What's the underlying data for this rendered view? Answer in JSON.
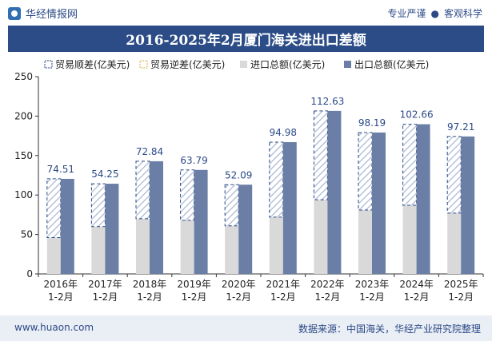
{
  "header": {
    "brand": "华经情报网",
    "tagline_left": "专业严谨",
    "tagline_right": "客观科学"
  },
  "footer": {
    "website": "www.huaon.com",
    "source": "数据来源：中国海关，华经产业研究院整理"
  },
  "colors": {
    "title_bg": "#2b4c86",
    "export": "#6b7ea6",
    "import": "#d9d9d9",
    "surplus_hatch": "#a9b8d4",
    "label": "#2c4a86"
  },
  "chart_data": {
    "type": "bar",
    "title": "2016-2025年2月厦门海关进出口差额",
    "categories": [
      "2016年\n1-2月",
      "2017年\n1-2月",
      "2018年\n1-2月",
      "2019年\n1-2月",
      "2020年\n1-2月",
      "2021年\n1-2月",
      "2022年\n1-2月",
      "2023年\n1-2月",
      "2024年\n1-2月",
      "2025年\n1-2月"
    ],
    "series": [
      {
        "name": "贸易顺差(亿美元)",
        "values": [
          74.51,
          54.25,
          72.84,
          63.79,
          52.09,
          94.98,
          112.63,
          98.19,
          102.66,
          97.21
        ]
      },
      {
        "name": "贸易逆差(亿美元)",
        "values": [
          0,
          0,
          0,
          0,
          0,
          0,
          0,
          0,
          0,
          0
        ]
      },
      {
        "name": "进口总额(亿美元)",
        "values": [
          46,
          60,
          70,
          68,
          61,
          72,
          94,
          81,
          87,
          77
        ]
      },
      {
        "name": "出口总额(亿美元)",
        "values": [
          120.5,
          114.3,
          142.8,
          131.8,
          113.1,
          167.0,
          206.6,
          179.2,
          189.7,
          174.2
        ]
      }
    ],
    "ylim": [
      0,
      250
    ],
    "yticks": [
      0,
      50,
      100,
      150,
      200,
      250
    ],
    "xlabel": "",
    "ylabel": "",
    "legend_position": "top"
  }
}
